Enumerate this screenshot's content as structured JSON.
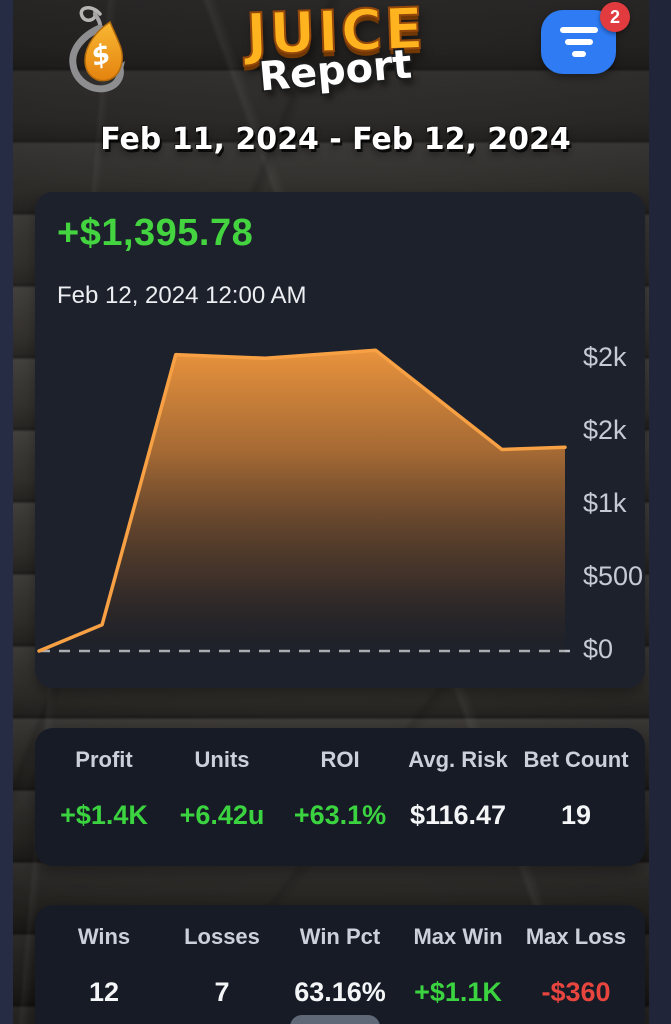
{
  "header": {
    "title": "JUICE",
    "subtitle": "Report",
    "logo_symbol": "$",
    "notifications": {
      "badge": "2"
    }
  },
  "date_range": "Feb 11, 2024 - Feb 12, 2024",
  "summary": {
    "profit": "+$1,395.78",
    "timestamp": "Feb 12, 2024 12:00 AM"
  },
  "chart_data": {
    "type": "area",
    "title": "",
    "xlabel": "",
    "ylabel": "",
    "x_range": [
      "Feb 11, 2024 12:00 AM",
      "Feb 12, 2024 12:00 AM"
    ],
    "points": [
      {
        "x": 0.0,
        "y": 0
      },
      {
        "x": 0.12,
        "y": 180
      },
      {
        "x": 0.26,
        "y": 2030
      },
      {
        "x": 0.43,
        "y": 2005
      },
      {
        "x": 0.64,
        "y": 2060
      },
      {
        "x": 0.88,
        "y": 1380
      },
      {
        "x": 1.0,
        "y": 1395.78
      }
    ],
    "ylim": [
      0,
      2230
    ],
    "y_axis": {
      "side": "right",
      "ticks": [
        {
          "label": "$2k",
          "value": 2000
        },
        {
          "label": "$2k",
          "value": 1500
        },
        {
          "label": "$1k",
          "value": 1000
        },
        {
          "label": "$500",
          "value": 500
        },
        {
          "label": "$0",
          "value": 0
        }
      ]
    },
    "baseline": {
      "value": 0,
      "style": "dashed"
    },
    "grid": false,
    "legend": false,
    "line_color": "#f7a044"
  },
  "stats_primary": {
    "headers": [
      "Profit",
      "Units",
      "ROI",
      "Avg. Risk",
      "Bet Count"
    ],
    "values": [
      "+$1.4K",
      "+6.42u",
      "+63.1%",
      "$116.47",
      "19"
    ],
    "value_styles": [
      "pos",
      "pos",
      "pos",
      "neu",
      "neu"
    ]
  },
  "stats_secondary": {
    "headers": [
      "Wins",
      "Losses",
      "Win Pct",
      "Max Win",
      "Max Loss"
    ],
    "values": [
      "12",
      "7",
      "63.16%",
      "+$1.1K",
      "-$360"
    ],
    "value_styles": [
      "neu",
      "neu",
      "neu",
      "pos",
      "neg"
    ]
  },
  "colors": {
    "profit_green": "#3bd33f",
    "loss_red": "#e8453f",
    "chart_line": "#f7a044",
    "button_blue": "#2e7bf3",
    "badge_red": "#e23b3f"
  }
}
